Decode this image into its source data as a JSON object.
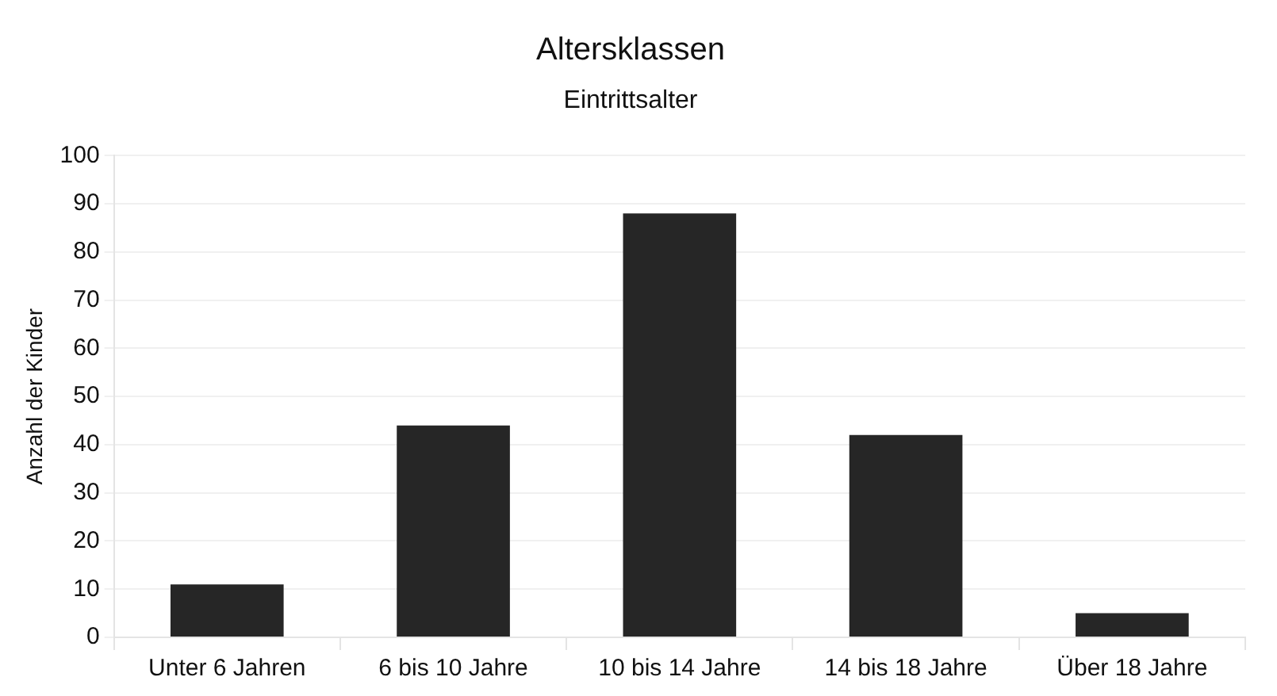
{
  "chart_data": {
    "type": "bar",
    "title": "Altersklassen",
    "subtitle": "Eintrittsalter",
    "ylabel": "Anzahl der Kinder",
    "categories": [
      "Unter 6 Jahren",
      "6 bis 10 Jahre",
      "10 bis 14 Jahre",
      "14 bis 18 Jahre",
      "Über 18 Jahre"
    ],
    "values": [
      11,
      44,
      88,
      42,
      5
    ],
    "color": "#262626",
    "ylim": [
      0,
      100
    ],
    "yticks": [
      0,
      10,
      20,
      30,
      40,
      50,
      60,
      70,
      80,
      90,
      100
    ],
    "grid": "y",
    "legend": false
  }
}
